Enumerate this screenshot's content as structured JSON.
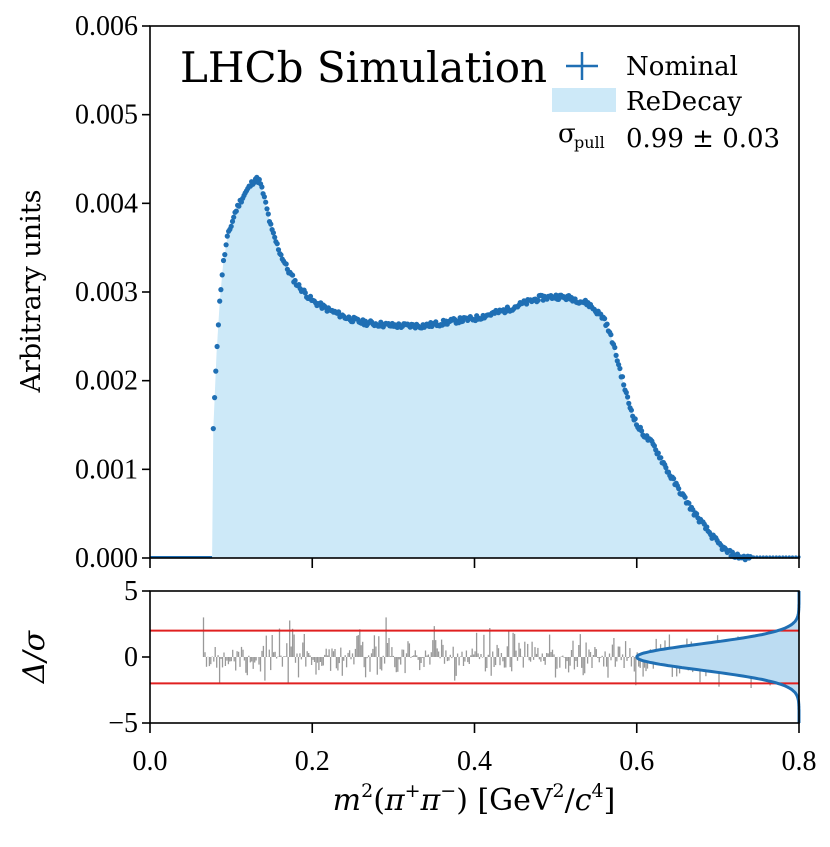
{
  "chart_data": [
    {
      "type": "line",
      "id": "main",
      "title": "LHCb Simulation",
      "ylabel": "Arbitrary units",
      "xlabel": "",
      "xlim": [
        0.0,
        0.8
      ],
      "ylim": [
        0.0,
        0.006
      ],
      "yticks": [
        "0.000",
        "0.001",
        "0.002",
        "0.003",
        "0.004",
        "0.005",
        "0.006"
      ],
      "ytick_values": [
        0,
        0.001,
        0.002,
        0.003,
        0.004,
        0.005,
        0.006
      ],
      "legend": {
        "position": "top-right",
        "nominal": "Nominal",
        "redecay": "ReDecay",
        "sigma_label": "σ",
        "sigma_sub": "pull",
        "sigma_value": "0.99 ± 0.03"
      },
      "series": [
        {
          "name": "Nominal",
          "style": "points",
          "color": "#1f6fb4",
          "x": [
            0.078,
            0.082,
            0.086,
            0.09,
            0.095,
            0.1,
            0.105,
            0.11,
            0.115,
            0.12,
            0.125,
            0.13,
            0.135,
            0.14,
            0.145,
            0.15,
            0.16,
            0.17,
            0.18,
            0.19,
            0.2,
            0.22,
            0.24,
            0.26,
            0.28,
            0.3,
            0.32,
            0.34,
            0.36,
            0.38,
            0.4,
            0.42,
            0.44,
            0.46,
            0.48,
            0.5,
            0.52,
            0.54,
            0.56,
            0.57,
            0.58,
            0.59,
            0.6,
            0.61,
            0.62,
            0.63,
            0.64,
            0.65,
            0.66,
            0.67,
            0.68,
            0.69,
            0.7,
            0.71,
            0.72,
            0.73,
            0.74
          ],
          "y": [
            0.00145,
            0.0023,
            0.0029,
            0.0033,
            0.0036,
            0.00375,
            0.0039,
            0.004,
            0.00408,
            0.00415,
            0.00422,
            0.00428,
            0.00425,
            0.0041,
            0.0039,
            0.0037,
            0.00345,
            0.00325,
            0.0031,
            0.003,
            0.0029,
            0.0028,
            0.00272,
            0.00266,
            0.00264,
            0.00262,
            0.00262,
            0.00262,
            0.00265,
            0.00268,
            0.0027,
            0.00275,
            0.0028,
            0.00287,
            0.00293,
            0.00295,
            0.00293,
            0.00287,
            0.0027,
            0.00245,
            0.0021,
            0.00175,
            0.0015,
            0.00138,
            0.00128,
            0.00112,
            0.00095,
            0.0008,
            0.00066,
            0.00052,
            0.0004,
            0.00028,
            0.00017,
            8e-05,
            3e-05,
            1e-05,
            0.0
          ]
        },
        {
          "name": "ReDecay",
          "style": "filled-histogram",
          "color": "#cde9f8",
          "x": [
            0.0,
            0.0765,
            0.078,
            0.082,
            0.086,
            0.09,
            0.095,
            0.1,
            0.105,
            0.11,
            0.115,
            0.12,
            0.125,
            0.13,
            0.135,
            0.14,
            0.145,
            0.15,
            0.16,
            0.17,
            0.18,
            0.19,
            0.2,
            0.22,
            0.24,
            0.26,
            0.28,
            0.3,
            0.32,
            0.34,
            0.36,
            0.38,
            0.4,
            0.42,
            0.44,
            0.46,
            0.48,
            0.5,
            0.52,
            0.54,
            0.56,
            0.57,
            0.58,
            0.59,
            0.6,
            0.61,
            0.62,
            0.63,
            0.64,
            0.65,
            0.66,
            0.67,
            0.68,
            0.69,
            0.7,
            0.71,
            0.72,
            0.73,
            0.74,
            0.8
          ],
          "y": [
            0.0,
            0.0,
            0.00145,
            0.0023,
            0.0029,
            0.0033,
            0.0036,
            0.00375,
            0.0039,
            0.004,
            0.00408,
            0.00415,
            0.00422,
            0.00428,
            0.00425,
            0.0041,
            0.0039,
            0.0037,
            0.00345,
            0.00325,
            0.0031,
            0.003,
            0.0029,
            0.0028,
            0.00272,
            0.00266,
            0.00264,
            0.00262,
            0.00262,
            0.00262,
            0.00265,
            0.00268,
            0.0027,
            0.00275,
            0.0028,
            0.00287,
            0.00293,
            0.00295,
            0.00293,
            0.00287,
            0.0027,
            0.00245,
            0.0021,
            0.00175,
            0.0015,
            0.00138,
            0.00128,
            0.00112,
            0.00095,
            0.0008,
            0.00066,
            0.00052,
            0.0004,
            0.00028,
            0.00017,
            8e-05,
            3e-05,
            1e-05,
            0.0,
            0.0
          ]
        }
      ]
    },
    {
      "type": "bar",
      "id": "pull",
      "ylabel": "Δ/σ",
      "xlabel": "m²(π⁺π⁻) [GeV²/c⁴]",
      "xlabel_parts": {
        "m": "m",
        "sq": "2",
        "open": "(",
        "pi1": "π",
        "plus": "+",
        "pi2": "π",
        "minus": "−",
        "close": ")",
        "unit_open": " [GeV",
        "unit_sq": "2",
        "slash": "/",
        "c": "c",
        "four": "4",
        "unit_close": "]"
      },
      "xlim": [
        0.0,
        0.8
      ],
      "ylim": [
        -5,
        5
      ],
      "xticks": [
        "0.0",
        "0.2",
        "0.4",
        "0.6",
        "0.8"
      ],
      "xtick_values": [
        0.0,
        0.2,
        0.4,
        0.6,
        0.8
      ],
      "yticks": [
        "5",
        "0",
        "−5"
      ],
      "ytick_values": [
        5,
        0,
        -5
      ],
      "reference_lines": [
        2,
        -2
      ],
      "reference_color": "#e02020",
      "pull_range": [
        0.066,
        0.766
      ],
      "pull_color": "#999999",
      "pull_seed": 7,
      "gaussian": {
        "mean": 0.0,
        "sigma": 0.99,
        "peak_x": 0.8,
        "base_x": 0.6,
        "color": "#1f6fb4",
        "fill": "#bcdcf2"
      }
    }
  ]
}
